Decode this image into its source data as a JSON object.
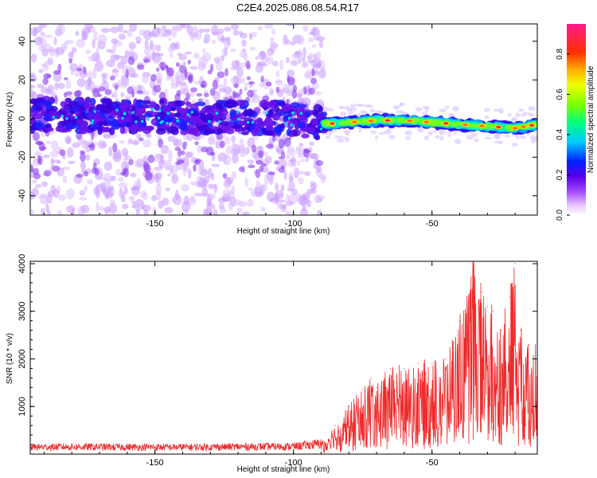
{
  "title": "C2E4.2025.086.08.54.R17",
  "chart_data": [
    {
      "type": "heatmap",
      "xlabel": "Height of straight line (km)",
      "ylabel": "Frequency (Hz)",
      "xlim": [
        -195,
        -12
      ],
      "ylim": [
        -50,
        49
      ],
      "x_ticks": [
        -150,
        -100,
        -50
      ],
      "y_ticks": [
        -40,
        -20,
        0,
        20,
        40
      ],
      "x_tick_labels": [
        "-150",
        "-100",
        "-50"
      ],
      "y_tick_labels": [
        "-40",
        "-20",
        "0",
        "20",
        "40"
      ],
      "colorbar": {
        "label": "Normalized spectral amplitude",
        "range": [
          0,
          0.95
        ],
        "ticks": [
          0.0,
          0.2,
          0.4,
          0.6,
          0.8
        ],
        "tick_labels": [
          "0.0",
          "0.2",
          "0.4",
          "0.6",
          "0.8"
        ],
        "colormap": "rainbow (white-violet-blue-cyan-green-yellow-orange-red-magenta)"
      },
      "ridge": {
        "x": [
          -195,
          -150,
          -100,
          -90,
          -80,
          -70,
          -60,
          -50,
          -40,
          -30,
          -20,
          -12
        ],
        "freq": [
          2,
          1,
          0,
          -3,
          -2,
          -1,
          -1,
          -2,
          -3,
          -4,
          -5,
          -3
        ]
      }
    },
    {
      "type": "line",
      "xlabel": "Height of straight line (km)",
      "ylabel": "SNR (10 * v/v)",
      "xlim": [
        -195,
        -12
      ],
      "ylim": [
        0,
        4050
      ],
      "x_ticks": [
        -150,
        -100,
        -50
      ],
      "y_ticks": [
        1000,
        2000,
        3000,
        4000
      ],
      "x_tick_labels": [
        "-150",
        "-100",
        "-50"
      ],
      "y_tick_labels": [
        "1000",
        "2000",
        "3000",
        "4000"
      ],
      "series": [
        {
          "color": "#ee2a2a",
          "x": [
            -195,
            -180,
            -160,
            -140,
            -120,
            -100,
            -90,
            -85,
            -80,
            -75,
            -72,
            -70,
            -65,
            -60,
            -55,
            -50,
            -45,
            -40,
            -38,
            -35,
            -32,
            -30,
            -28,
            -25,
            -22,
            -20,
            -18,
            -15,
            -12
          ],
          "y": [
            200,
            210,
            200,
            200,
            210,
            220,
            300,
            600,
            1000,
            1350,
            1600,
            1400,
            1800,
            1800,
            1900,
            1900,
            2000,
            2800,
            3000,
            4000,
            3400,
            3100,
            3000,
            2600,
            3300,
            4000,
            2600,
            2300,
            2200
          ]
        }
      ]
    }
  ]
}
